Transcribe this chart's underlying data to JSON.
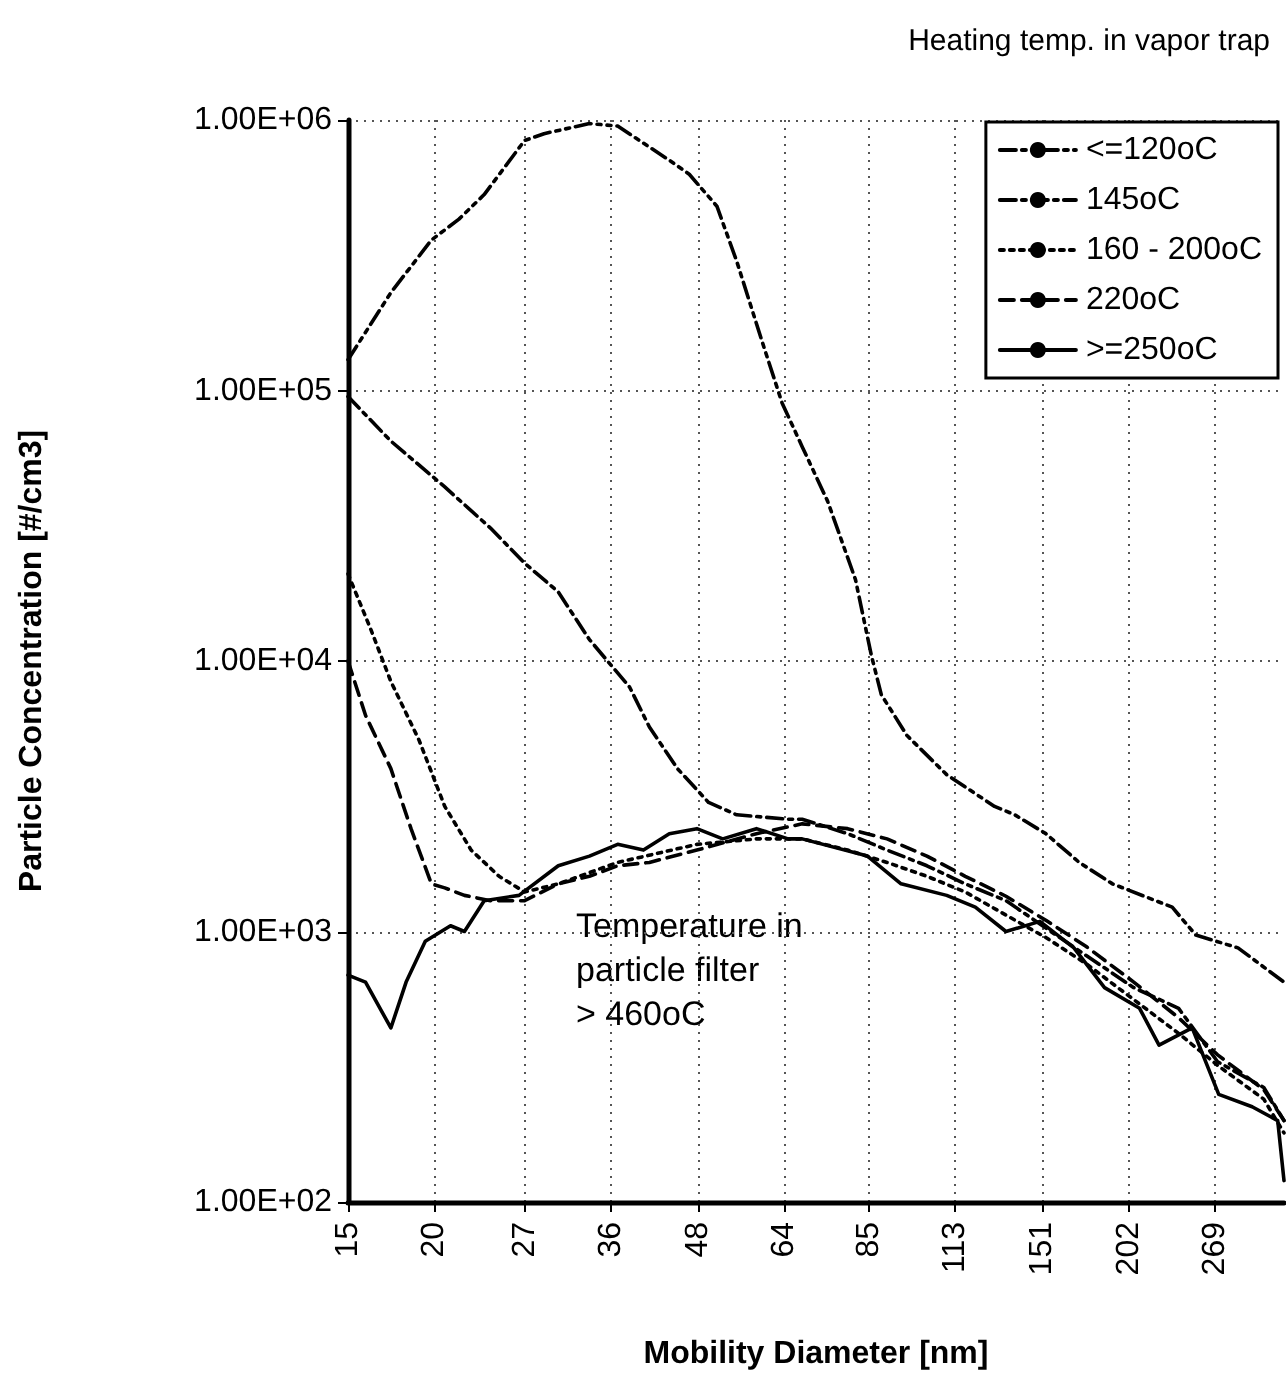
{
  "chart_data": {
    "type": "line",
    "legend_title": "Heating temp. in vapor trap",
    "xlabel": "Mobility Diameter [nm]",
    "ylabel": "Particle Concentration [#/cm3]",
    "annotations": [
      "Temperature in\nparticle filter\n> 460oC"
    ],
    "log": "xy",
    "xlim": [
      15,
      338
    ],
    "xticks": [
      15,
      20,
      27,
      36,
      48,
      64,
      85,
      113,
      151,
      202,
      269
    ],
    "ylim": [
      100,
      1000000
    ],
    "yticks": [
      {
        "value": 100,
        "label": "1.00E+02"
      },
      {
        "value": 1000,
        "label": "1.00E+03"
      },
      {
        "value": 10000,
        "label": "1.00E+04"
      },
      {
        "value": 100000,
        "label": "1.00E+05"
      },
      {
        "value": 1000000,
        "label": "1.00E+06"
      }
    ],
    "grid": true,
    "legend": "top right",
    "marker": "none",
    "series": [
      {
        "name": "<=120oC",
        "color": "#000000",
        "line_style": "dash-dot-dot",
        "x": [
          15,
          17.3,
          19.8,
          21.7,
          23.6,
          27.0,
          28.8,
          33.5,
          36.8,
          43.7,
          46.7,
          51.2,
          54.7,
          59.6,
          63.6,
          68,
          74,
          81.2,
          85.6,
          88.5,
          96.4,
          110,
          129,
          138,
          153,
          171,
          191,
          233,
          252,
          290,
          338
        ],
        "values": [
          130000,
          230000,
          360000,
          430000,
          530000,
          840000,
          890000,
          970000,
          950000,
          710000,
          630000,
          480000,
          300000,
          150000,
          90000,
          62000,
          39000,
          20000,
          10500,
          7500,
          5300,
          3800,
          2900,
          2700,
          2300,
          1800,
          1500,
          1230,
          970,
          870,
          650
        ]
      },
      {
        "name": "145oC",
        "color": "#000000",
        "line_style": "dash-dot",
        "x": [
          15,
          17.3,
          20.7,
          24.1,
          27.0,
          30.2,
          33.5,
          38.3,
          40.9,
          44.9,
          49.8,
          54.7,
          64.9,
          68,
          79.1,
          90.2,
          103,
          117,
          134,
          153,
          175,
          205,
          238,
          271,
          316,
          338
        ],
        "values": [
          95000,
          65000,
          44000,
          31000,
          23000,
          18000,
          12000,
          8000,
          5700,
          4000,
          3000,
          2700,
          2600,
          2600,
          2300,
          2000,
          1750,
          1500,
          1300,
          1030,
          815,
          620,
          520,
          330,
          265,
          200
        ]
      },
      {
        "name": "160 - 200oC",
        "color": "#000000",
        "line_style": "dotted",
        "x": [
          15,
          16.2,
          17.3,
          19.0,
          20.7,
          22.6,
          24.8,
          27.0,
          30.2,
          36.8,
          47.9,
          58.4,
          68,
          79.1,
          90.2,
          103,
          117,
          134,
          153,
          175,
          205,
          238,
          271,
          316,
          338
        ],
        "values": [
          21000,
          13000,
          8400,
          5100,
          2900,
          2000,
          1600,
          1400,
          1500,
          1800,
          2100,
          2200,
          2200,
          2000,
          1800,
          1600,
          1400,
          1150,
          950,
          760,
          560,
          420,
          320,
          240,
          180
        ]
      },
      {
        "name": "220oC",
        "color": "#000000",
        "line_style": "dashed",
        "x": [
          15,
          15.9,
          17.3,
          18.5,
          19.8,
          20.7,
          22.1,
          24.1,
          27.0,
          30.2,
          33.5,
          36.8,
          40.9,
          47.9,
          58.4,
          68,
          79.1,
          90.2,
          103,
          117,
          134,
          153,
          175,
          205,
          238,
          271,
          316,
          338
        ],
        "values": [
          10000,
          6300,
          4000,
          2400,
          1500,
          1450,
          1360,
          1300,
          1300,
          1500,
          1600,
          1750,
          1800,
          2000,
          2300,
          2500,
          2400,
          2200,
          1900,
          1600,
          1350,
          1100,
          880,
          650,
          480,
          350,
          260,
          200
        ]
      },
      {
        "name": ">=250oC",
        "color": "#000000",
        "line_style": "solid",
        "x": [
          15,
          15.9,
          17.3,
          18.2,
          19.4,
          21.1,
          22.1,
          23.6,
          26.5,
          30.2,
          33.5,
          36.8,
          40.1,
          43.7,
          47.9,
          52.2,
          58.4,
          64.9,
          68,
          84.5,
          94.5,
          110,
          121,
          134,
          150,
          168,
          186,
          209,
          223,
          249,
          272,
          304,
          331,
          338
        ],
        "values": [
          690,
          650,
          440,
          650,
          920,
          1050,
          1000,
          1300,
          1360,
          1750,
          1900,
          2100,
          2000,
          2300,
          2400,
          2200,
          2400,
          2200,
          2200,
          1900,
          1500,
          1360,
          1230,
          1000,
          1090,
          870,
          620,
          520,
          380,
          440,
          250,
          225,
          200,
          120
        ]
      }
    ]
  }
}
